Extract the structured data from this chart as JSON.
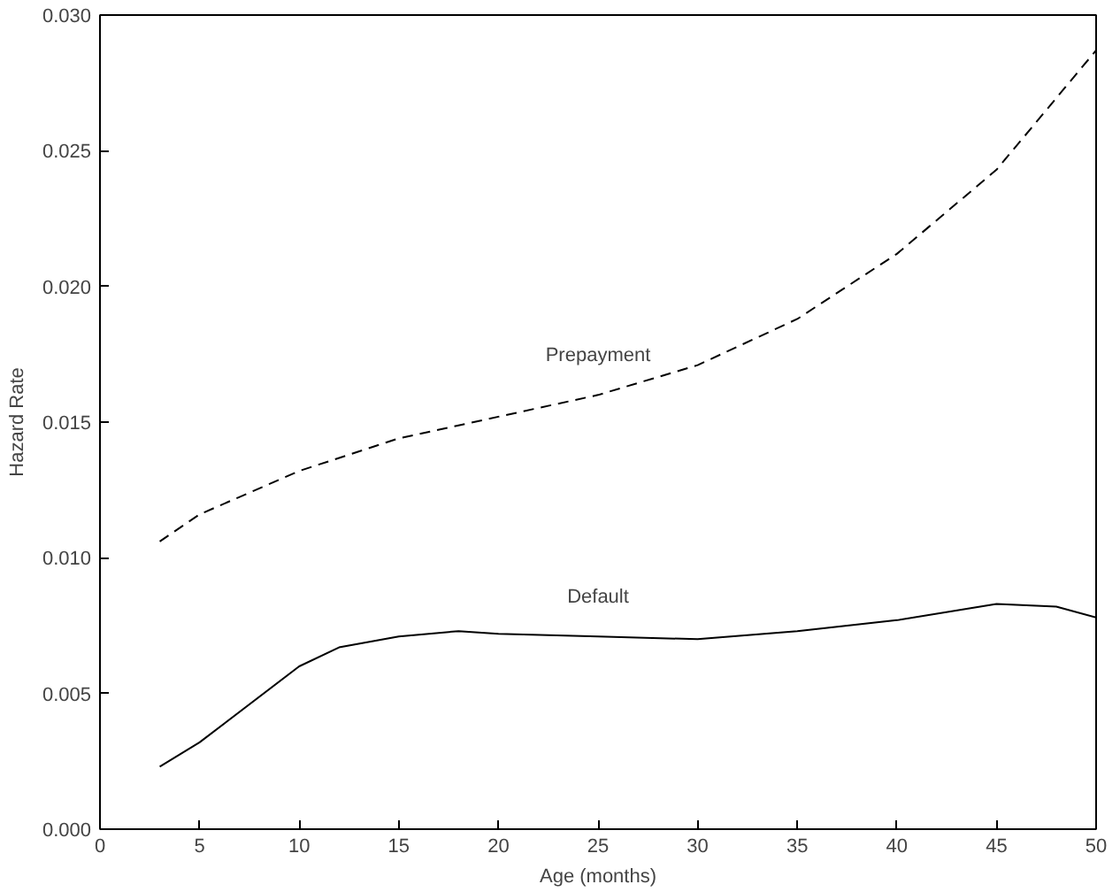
{
  "chart_data": {
    "type": "line",
    "xlabel": "Age (months)",
    "ylabel": "Hazard Rate",
    "xlim": [
      0,
      50
    ],
    "xticks": [
      0,
      5,
      10,
      15,
      20,
      25,
      30,
      35,
      40,
      45,
      50
    ],
    "ylim": [
      0,
      0.03
    ],
    "yticks": [
      {
        "value": 0,
        "label": "0.000"
      },
      {
        "value": 0.005,
        "label": "0.005"
      },
      {
        "value": 0.01,
        "label": "0.010"
      },
      {
        "value": 0.015,
        "label": "0.015"
      },
      {
        "value": 0.02,
        "label": "0.020"
      },
      {
        "value": 0.025,
        "label": "0.025"
      },
      {
        "value": 0.03,
        "label": "0.030"
      }
    ],
    "grid": false,
    "marker": "none",
    "series": [
      {
        "name": "Prepayment",
        "color": "#000000",
        "line_style": "dashed",
        "x": [
          3,
          5,
          10,
          15,
          20,
          25,
          30,
          35,
          40,
          45,
          50
        ],
        "values": [
          0.0106,
          0.0116,
          0.0132,
          0.0144,
          0.0152,
          0.016,
          0.0171,
          0.0188,
          0.0212,
          0.0243,
          0.0287
        ]
      },
      {
        "name": "Default",
        "color": "#000000",
        "line_style": "solid",
        "x": [
          3,
          5,
          10,
          12,
          15,
          18,
          20,
          25,
          30,
          35,
          40,
          45,
          48,
          50
        ],
        "values": [
          0.0023,
          0.0032,
          0.006,
          0.0067,
          0.0071,
          0.0073,
          0.0072,
          0.0071,
          0.007,
          0.0073,
          0.0077,
          0.0083,
          0.0082,
          0.0078
        ]
      }
    ]
  }
}
